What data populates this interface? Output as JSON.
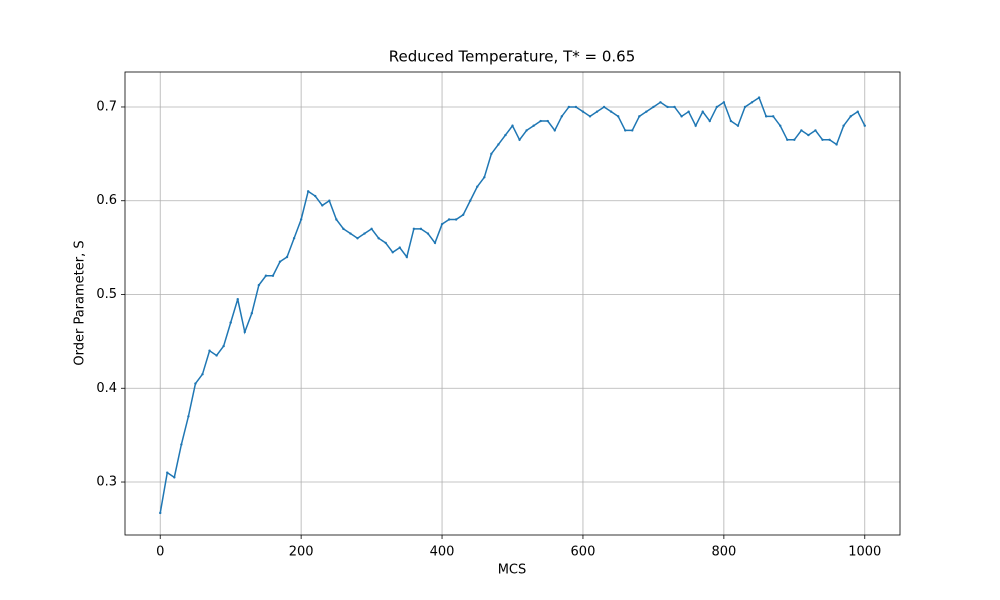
{
  "chart_data": {
    "type": "line",
    "title": "Reduced Temperature, T* = 0.65",
    "x_label": "MCS",
    "y_label": "Order Parameter, S",
    "xlim": [
      -50,
      1050
    ],
    "ylim": [
      0.2435,
      0.7373
    ],
    "xticks": [
      0,
      200,
      400,
      600,
      800,
      1000
    ],
    "yticks": [
      0.3,
      0.4,
      0.5,
      0.6,
      0.7
    ],
    "grid": true,
    "series": [
      {
        "color": "#1f77b4",
        "x": [
          0,
          10,
          20,
          30,
          40,
          50,
          60,
          70,
          80,
          90,
          100,
          110,
          120,
          130,
          140,
          150,
          160,
          170,
          180,
          190,
          200,
          210,
          220,
          230,
          240,
          250,
          260,
          270,
          280,
          290,
          300,
          310,
          320,
          330,
          340,
          350,
          360,
          370,
          380,
          390,
          400,
          410,
          420,
          430,
          440,
          450,
          460,
          470,
          480,
          490,
          500,
          510,
          520,
          530,
          540,
          550,
          560,
          570,
          580,
          590,
          600,
          610,
          620,
          630,
          640,
          650,
          660,
          670,
          680,
          690,
          700,
          710,
          720,
          730,
          740,
          750,
          760,
          770,
          780,
          790,
          800,
          810,
          820,
          830,
          840,
          850,
          860,
          870,
          880,
          890,
          900,
          910,
          920,
          930,
          940,
          950,
          960,
          970,
          980,
          990,
          1000
        ],
        "values": [
          0.267,
          0.31,
          0.305,
          0.34,
          0.37,
          0.405,
          0.415,
          0.44,
          0.435,
          0.445,
          0.47,
          0.495,
          0.46,
          0.48,
          0.51,
          0.52,
          0.52,
          0.535,
          0.54,
          0.56,
          0.58,
          0.61,
          0.605,
          0.595,
          0.6,
          0.58,
          0.57,
          0.565,
          0.56,
          0.565,
          0.57,
          0.56,
          0.555,
          0.545,
          0.55,
          0.54,
          0.57,
          0.57,
          0.565,
          0.555,
          0.575,
          0.58,
          0.58,
          0.585,
          0.6,
          0.615,
          0.625,
          0.65,
          0.66,
          0.67,
          0.68,
          0.665,
          0.675,
          0.68,
          0.685,
          0.685,
          0.675,
          0.69,
          0.7,
          0.7,
          0.695,
          0.69,
          0.695,
          0.7,
          0.695,
          0.69,
          0.675,
          0.675,
          0.69,
          0.695,
          0.7,
          0.705,
          0.7,
          0.7,
          0.69,
          0.695,
          0.68,
          0.695,
          0.685,
          0.7,
          0.705,
          0.685,
          0.68,
          0.7,
          0.705,
          0.71,
          0.69,
          0.69,
          0.68,
          0.665,
          0.665,
          0.675,
          0.67,
          0.675,
          0.665,
          0.665,
          0.66,
          0.68,
          0.69,
          0.695,
          0.68
        ]
      }
    ]
  }
}
